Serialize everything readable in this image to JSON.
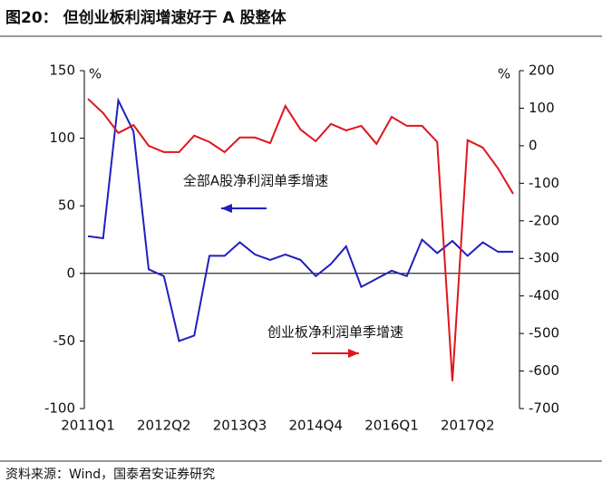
{
  "chart_data": {
    "type": "line",
    "title": "图20： 但创业板利润增速好于 A 股整体",
    "source": "资料来源：Wind，国泰君安证券研究",
    "y_unit": "%",
    "y2_unit": "%",
    "categories": [
      "2011Q1",
      null,
      null,
      null,
      null,
      "2012Q2",
      null,
      null,
      null,
      null,
      "2013Q3",
      null,
      null,
      null,
      null,
      "2014Q4",
      null,
      null,
      null,
      null,
      "2016Q1",
      null,
      null,
      null,
      null,
      "2017Q2",
      null,
      null,
      null
    ],
    "series": [
      {
        "name": "全部A股净利润单季增速",
        "color": "#1f1fbf",
        "axis": "y",
        "values": [
          27.5,
          26,
          128,
          105,
          3,
          -2,
          -50,
          -46,
          13,
          13,
          23,
          14,
          10,
          14,
          10,
          -2,
          7,
          20,
          -10,
          -4,
          2,
          -2,
          25,
          15,
          24,
          13,
          23,
          16,
          16
        ]
      },
      {
        "name": "创业板净利润单季增速",
        "color": "#e0141e",
        "axis": "y2",
        "values": [
          125,
          87,
          34,
          55,
          0,
          -17,
          -17,
          27,
          10,
          -17,
          22,
          22,
          7,
          106,
          43,
          12,
          58,
          41,
          53,
          5,
          77,
          53,
          53,
          10,
          -627,
          15,
          -5,
          -60,
          -128
        ]
      }
    ],
    "ylim": [
      -100,
      150
    ],
    "yticks": [
      -100,
      -50,
      0,
      50,
      100,
      150
    ],
    "y2lim": [
      -700,
      200
    ],
    "y2ticks": [
      -700,
      -600,
      -500,
      -400,
      -300,
      -200,
      -100,
      0,
      100,
      200
    ]
  }
}
